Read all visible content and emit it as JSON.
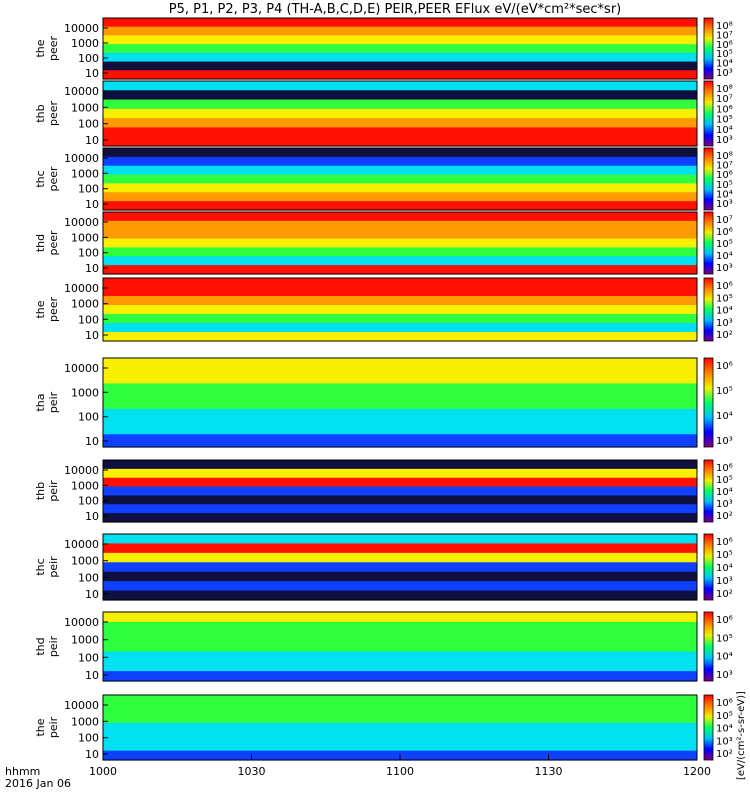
{
  "title": "P5, P1, P2, P3, P4 (TH-A,B,C,D,E) PEIR,PEER EFlux eV/(eV*cm²*sec*sr)",
  "footer": {
    "axis_name": "hhmm",
    "date": "2016 Jan 06"
  },
  "colors": {
    "red": "#ff1000",
    "orange": "#ff9a00",
    "yellow": "#f8f000",
    "green": "#30ff40",
    "cyan": "#00e0f0",
    "blue": "#1040ff",
    "navy": "#101040"
  },
  "chart_data": {
    "type": "heatmap",
    "x_ticks": [
      "1000",
      "1030",
      "1100",
      "1130",
      "1200"
    ],
    "y_ticks": [
      "10000",
      "1000",
      "100",
      "10"
    ],
    "colorbar_label": "[eV/(cm²-s-sr-eV)]",
    "panels": [
      {
        "label": "the peer",
        "cbar_ticks": [
          "10⁸",
          "10⁷",
          "10⁶",
          "10⁵",
          "10⁴",
          "10³"
        ],
        "bands": [
          "red",
          "orange",
          "yellow",
          "green",
          "cyan",
          "navy",
          "red"
        ]
      },
      {
        "label": "thb peer",
        "cbar_ticks": [
          "10⁸",
          "10⁷",
          "10⁶",
          "10⁵",
          "10⁴",
          "10³"
        ],
        "bands": [
          "cyan",
          "navy",
          "green",
          "yellow",
          "orange",
          "red",
          "red"
        ]
      },
      {
        "label": "thc peer",
        "cbar_ticks": [
          "10⁸",
          "10⁷",
          "10⁶",
          "10⁵",
          "10⁴",
          "10³"
        ],
        "bands": [
          "navy",
          "blue",
          "cyan",
          "green",
          "yellow",
          "orange",
          "red"
        ]
      },
      {
        "label": "thd peer",
        "cbar_ticks": [
          "10⁷",
          "10⁶",
          "10⁵",
          "10⁴",
          "10³"
        ],
        "bands": [
          "red",
          "orange",
          "orange",
          "yellow",
          "green",
          "cyan",
          "red"
        ]
      },
      {
        "label": "the peer",
        "cbar_ticks": [
          "10⁶",
          "10⁵",
          "10⁴",
          "10³",
          "10²"
        ],
        "bands": [
          "red",
          "red",
          "orange",
          "yellow",
          "green",
          "cyan",
          "yellow"
        ]
      },
      {
        "label": "tha peir",
        "cbar_ticks": [
          "10⁶",
          "10⁵",
          "10⁴",
          "10³"
        ],
        "bands": [
          "yellow",
          "yellow",
          "green",
          "green",
          "cyan",
          "cyan",
          "blue"
        ]
      },
      {
        "label": "thb peir",
        "cbar_ticks": [
          "10⁶",
          "10⁵",
          "10⁴",
          "10³",
          "10²"
        ],
        "bands": [
          "navy",
          "yellow",
          "red",
          "blue",
          "navy",
          "blue",
          "navy"
        ]
      },
      {
        "label": "thc peir",
        "cbar_ticks": [
          "10⁶",
          "10⁵",
          "10⁴",
          "10³",
          "10²"
        ],
        "bands": [
          "cyan",
          "red",
          "yellow",
          "blue",
          "navy",
          "blue",
          "navy"
        ]
      },
      {
        "label": "thd peir",
        "cbar_ticks": [
          "10⁶",
          "10⁵",
          "10⁴",
          "10³"
        ],
        "bands": [
          "yellow",
          "green",
          "green",
          "green",
          "cyan",
          "cyan",
          "blue"
        ]
      },
      {
        "label": "the peir",
        "cbar_ticks": [
          "10⁶",
          "10⁵",
          "10⁴",
          "10³",
          "10²"
        ],
        "bands": [
          "green",
          "green",
          "green",
          "cyan",
          "cyan",
          "cyan",
          "blue"
        ]
      }
    ]
  }
}
